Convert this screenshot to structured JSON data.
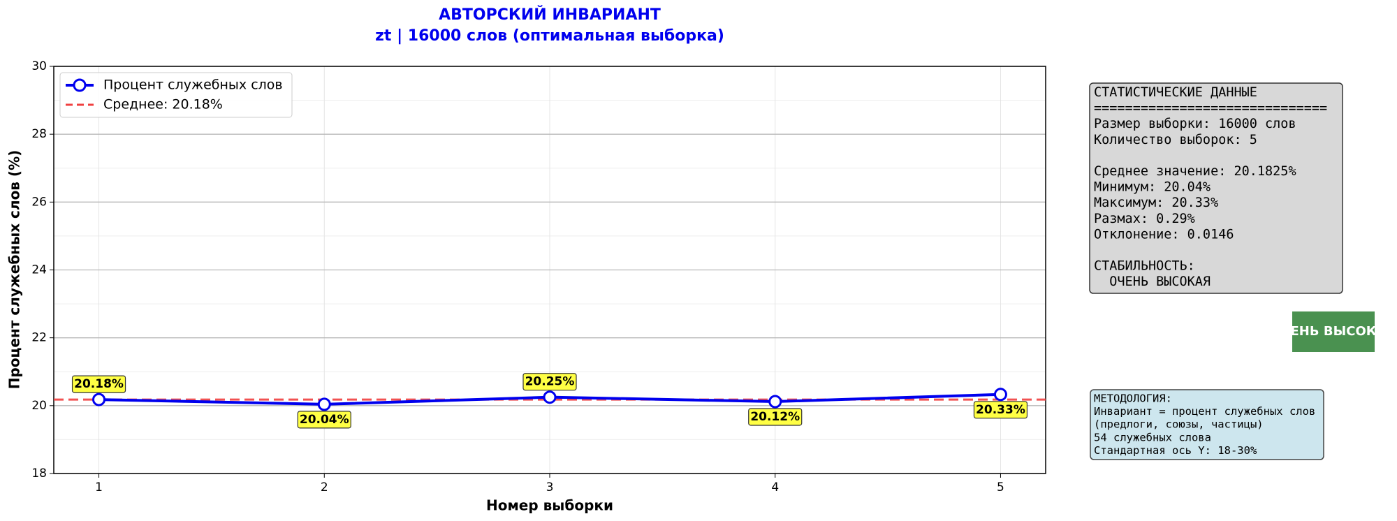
{
  "chart_data": {
    "type": "line",
    "title": "АВТОРСКИЙ ИНВАРИАНТ",
    "subtitle": "zt | 16000 слов (оптимальная выборка)",
    "x_label": "Номер выборки",
    "y_label": "Процент служебных слов (%)",
    "x": [
      1,
      2,
      3,
      4,
      5
    ],
    "xlim": [
      0.8,
      5.2
    ],
    "xticks": [
      1,
      2,
      3,
      4,
      5
    ],
    "ylim": [
      18,
      30
    ],
    "yticks": [
      18,
      20,
      22,
      24,
      26,
      28,
      30
    ],
    "grid": true,
    "legend": "upper left",
    "series": [
      {
        "name": "Процент служебных слов",
        "color": "#0000ee",
        "values": [
          20.18,
          20.04,
          20.25,
          20.12,
          20.33
        ],
        "value_labels": [
          "20.18%",
          "20.04%",
          "20.25%",
          "20.12%",
          "20.33%"
        ]
      }
    ],
    "mean_line": {
      "name": "Среднее: 20.18%",
      "value": 20.18,
      "color": "#f04040"
    }
  },
  "stats_box": {
    "groups": [
      [
        "СТАТИСТИЧЕСКИЕ ДАННЫЕ",
        "==============================",
        "Размер выборки: 16000 слов",
        "Количество выборок: 5"
      ],
      [
        "Среднее значение: 20.1825%",
        "Минимум: 20.04%",
        "Максимум: 20.33%",
        "Размах: 0.29%",
        "Отклонение: 0.0146"
      ],
      [
        "СТАБИЛЬНОСТЬ:",
        "  ОЧЕНЬ ВЫСОКАЯ"
      ]
    ]
  },
  "badge": "ЕНЬ ВЫСОК",
  "method_box": {
    "lines": [
      "МЕТОДОЛОГИЯ:",
      "Инвариант = процент служебных слов",
      "(предлоги, союзы, частицы)",
      "54 служебных слова",
      "Стандартная ось Y: 18-30%"
    ]
  }
}
